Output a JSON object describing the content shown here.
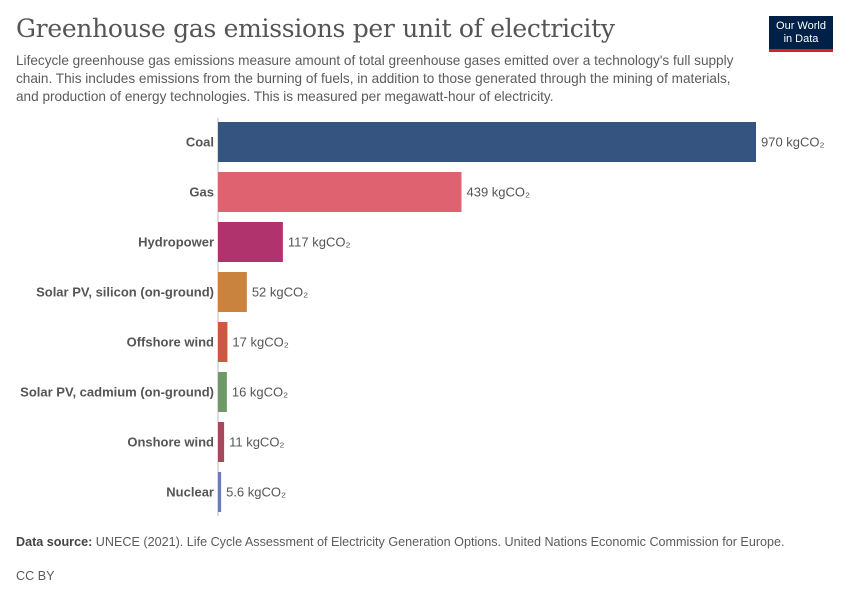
{
  "header": {
    "title": "Greenhouse gas emissions per unit of electricity",
    "subtitle": "Lifecycle greenhouse gas emissions measure amount of total greenhouse gases emitted over a technology's full supply chain. This includes emissions from the burning of fuels, in addition to those generated through the mining of materials, and production of energy technologies. This is measured per megawatt-hour of electricity.",
    "logo_line1": "Our World",
    "logo_line2": "in Data"
  },
  "chart_data": {
    "type": "bar",
    "orientation": "horizontal",
    "unit": "kgCO₂",
    "categories": [
      "Coal",
      "Gas",
      "Hydropower",
      "Solar PV, silicon (on-ground)",
      "Offshore wind",
      "Solar PV, cadmium (on-ground)",
      "Onshore wind",
      "Nuclear"
    ],
    "values": [
      970,
      439,
      117,
      52,
      17,
      16,
      11,
      5.6
    ],
    "value_labels": [
      "970 kgCO₂",
      "439 kgCO₂",
      "117 kgCO₂",
      "52 kgCO₂",
      "17 kgCO₂",
      "16 kgCO₂",
      "11 kgCO₂",
      "5.6 kgCO₂"
    ],
    "colors": [
      "#355580",
      "#df6270",
      "#b0336e",
      "#c9833f",
      "#cc5a3e",
      "#6f9a67",
      "#a44a5d",
      "#6a7cb4"
    ],
    "xlim": [
      0,
      970
    ],
    "grid": false,
    "legend": "none"
  },
  "footer": {
    "source_label": "Data source:",
    "source_text": "UNECE (2021). Life Cycle Assessment of Electricity Generation Options. United Nations Economic Commission for Europe.",
    "license": "CC BY"
  }
}
